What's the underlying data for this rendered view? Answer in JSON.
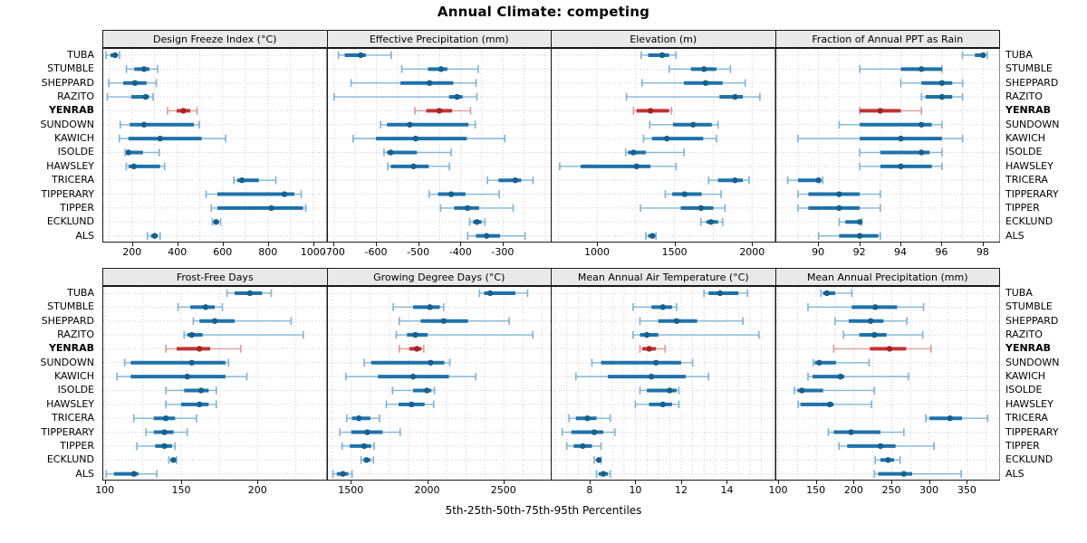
{
  "title": "Annual Climate: competing",
  "footer": "5th-25th-50th-75th-95th Percentiles",
  "percentile_labels": [
    "5th",
    "25th",
    "50th",
    "75th",
    "95th"
  ],
  "sites": [
    "TUBA",
    "STUMBLE",
    "SHEPPARD",
    "RAZITO",
    "YENRAB",
    "SUNDOWN",
    "KAWICH",
    "ISOLDE",
    "HAWSLEY",
    "TRICERA",
    "TIPPERARY",
    "TIPPER",
    "ECKLUND",
    "ALS"
  ],
  "highlight_site": "YENRAB",
  "colors": {
    "series": "#1d72aa",
    "series_dark": "#15608f",
    "series_light": "#82b4d6",
    "highlight": "#c03434",
    "highlight_dark": "#a52222",
    "highlight_light": "#dd9c9c",
    "strip_bg": "#e9e9e9",
    "grid": "#c8c8c8",
    "border": "#1a1a1a"
  },
  "chart_data": [
    {
      "type": "interval-dotplot",
      "title": "Design Freeze Index (°C)",
      "xlim": [
        69,
        1059
      ],
      "ticks": [
        200,
        400,
        600,
        800,
        1000
      ],
      "grid_step": 100,
      "percentiles": [
        [
          85,
          105,
          125,
          135,
          145
        ],
        [
          175,
          210,
          253,
          277,
          313
        ],
        [
          97,
          161,
          213,
          264,
          307
        ],
        [
          91,
          197,
          260,
          275,
          293
        ],
        [
          357,
          397,
          427,
          457,
          487
        ],
        [
          148,
          190,
          253,
          473,
          497
        ],
        [
          144,
          184,
          324,
          507,
          613
        ],
        [
          170,
          175,
          184,
          248,
          320
        ],
        [
          175,
          185,
          208,
          324,
          344
        ],
        [
          650,
          665,
          685,
          760,
          835
        ],
        [
          527,
          577,
          873,
          917,
          947
        ],
        [
          550,
          577,
          815,
          955,
          967
        ],
        [
          555,
          563,
          571,
          584,
          591
        ],
        [
          268,
          284,
          300,
          313,
          324
        ]
      ]
    },
    {
      "type": "interval-dotplot",
      "title": "Effective Precipitation (mm)",
      "xlim": [
        -717,
        -186
      ],
      "ticks": [
        -700,
        -600,
        -500,
        -400,
        -300
      ],
      "grid_step": 50,
      "percentiles": [
        [
          -690,
          -675,
          -637,
          -625,
          -565
        ],
        [
          -540,
          -478,
          -447,
          -432,
          -359
        ],
        [
          -660,
          -543,
          -474,
          -418,
          -364
        ],
        [
          -700,
          -428,
          -409,
          -396,
          -362
        ],
        [
          -509,
          -482,
          -451,
          -421,
          -377
        ],
        [
          -590,
          -575,
          -521,
          -382,
          -366
        ],
        [
          -655,
          -601,
          -507,
          -386,
          -296
        ],
        [
          -582,
          -575,
          -566,
          -504,
          -423
        ],
        [
          -573,
          -566,
          -512,
          -476,
          -427
        ],
        [
          -337,
          -311,
          -271,
          -257,
          -229
        ],
        [
          -475,
          -454,
          -423,
          -389,
          -309
        ],
        [
          -448,
          -416,
          -384,
          -357,
          -276
        ],
        [
          -379,
          -371,
          -362,
          -351,
          -343
        ],
        [
          -384,
          -364,
          -339,
          -307,
          -248
        ]
      ]
    },
    {
      "type": "interval-dotplot",
      "title": "Elevation (m)",
      "xlim": [
        702,
        2147
      ],
      "ticks": [
        1000,
        1500,
        2000
      ],
      "grid_step": 250,
      "percentiles": [
        [
          1285,
          1330,
          1420,
          1465,
          1510
        ],
        [
          1465,
          1605,
          1690,
          1770,
          1860
        ],
        [
          1290,
          1560,
          1700,
          1810,
          1955
        ],
        [
          1190,
          1790,
          1890,
          1940,
          2050
        ],
        [
          1235,
          1255,
          1345,
          1465,
          1480
        ],
        [
          1340,
          1490,
          1620,
          1740,
          1780
        ],
        [
          1300,
          1355,
          1450,
          1685,
          1770
        ],
        [
          1185,
          1200,
          1235,
          1315,
          1560
        ],
        [
          760,
          895,
          1255,
          1345,
          1510
        ],
        [
          1720,
          1780,
          1890,
          1940,
          1980
        ],
        [
          1440,
          1485,
          1565,
          1675,
          1800
        ],
        [
          1280,
          1540,
          1670,
          1750,
          1825
        ],
        [
          1670,
          1705,
          1735,
          1780,
          1810
        ],
        [
          1315,
          1330,
          1358,
          1370,
          1380
        ]
      ]
    },
    {
      "type": "interval-dotplot",
      "title": "Fraction of Annual PPT as Rain",
      "xlim": [
        87.9,
        98.8
      ],
      "ticks": [
        90,
        92,
        94,
        96,
        98
      ],
      "grid_step": 1,
      "percentiles": [
        [
          97,
          97.6,
          98,
          98,
          98.2
        ],
        [
          92,
          94,
          95,
          96,
          96
        ],
        [
          94,
          95,
          96,
          96.5,
          97
        ],
        [
          95,
          95.2,
          96,
          96.5,
          97
        ],
        [
          92,
          92,
          93,
          94,
          95
        ],
        [
          91,
          92,
          95,
          95.5,
          96
        ],
        [
          89,
          92,
          94,
          96,
          97
        ],
        [
          92,
          93,
          95,
          95.4,
          96
        ],
        [
          92,
          93,
          94,
          95.5,
          96
        ],
        [
          88.5,
          89,
          90,
          90,
          90.2
        ],
        [
          89,
          89.5,
          91,
          92,
          93
        ],
        [
          89,
          89.5,
          91,
          92,
          93
        ],
        [
          91,
          91.3,
          92,
          92,
          92.1
        ],
        [
          90,
          91,
          92,
          92.9,
          93
        ]
      ]
    },
    {
      "type": "interval-dotplot",
      "title": "Frost-Free Days",
      "xlim": [
        98.4,
        245.2
      ],
      "ticks": [
        100,
        150,
        200
      ],
      "grid_step": 25,
      "percentiles": [
        [
          180,
          185,
          195,
          203,
          209
        ],
        [
          148,
          156,
          166,
          172,
          177
        ],
        [
          158,
          162,
          172,
          185,
          222
        ],
        [
          152,
          154,
          157,
          164,
          230
        ],
        [
          140,
          147,
          162,
          169,
          189
        ],
        [
          113,
          117,
          157,
          179,
          181
        ],
        [
          108,
          117,
          154,
          179,
          193
        ],
        [
          140,
          152,
          163,
          168,
          173
        ],
        [
          140,
          150,
          162,
          168,
          173
        ],
        [
          119,
          132,
          140,
          146,
          160
        ],
        [
          127,
          132,
          139,
          145,
          154
        ],
        [
          121,
          133,
          139,
          144,
          146
        ],
        [
          142,
          143,
          145,
          146,
          147
        ],
        [
          101,
          106,
          119,
          122,
          134
        ]
      ]
    },
    {
      "type": "interval-dotplot",
      "title": "Growing Degree Days (°C)",
      "xlim": [
        1341,
        2810
      ],
      "ticks": [
        1500,
        2000,
        2500
      ],
      "grid_step": 125,
      "percentiles": [
        [
          2340,
          2370,
          2410,
          2575,
          2655
        ],
        [
          1775,
          1905,
          2015,
          2080,
          2105
        ],
        [
          1815,
          1955,
          2105,
          2265,
          2535
        ],
        [
          1795,
          1865,
          1920,
          2000,
          2690
        ],
        [
          1815,
          1880,
          1930,
          1960,
          1975
        ],
        [
          1585,
          1630,
          2020,
          2110,
          2145
        ],
        [
          1465,
          1675,
          1905,
          2140,
          2315
        ],
        [
          1770,
          1905,
          1995,
          2025,
          2045
        ],
        [
          1730,
          1810,
          1895,
          1980,
          2040
        ],
        [
          1470,
          1505,
          1550,
          1625,
          1685
        ],
        [
          1425,
          1500,
          1605,
          1705,
          1820
        ],
        [
          1440,
          1490,
          1585,
          1630,
          1650
        ],
        [
          1565,
          1580,
          1600,
          1625,
          1645
        ],
        [
          1380,
          1405,
          1445,
          1480,
          1505
        ]
      ]
    },
    {
      "type": "interval-dotplot",
      "title": "Mean Annual Air Temperature (°C)",
      "xlim": [
        6.3,
        16.1
      ],
      "ticks": [
        8,
        10,
        12,
        14
      ],
      "grid_step": 0.5,
      "percentiles": [
        [
          13.0,
          13.2,
          13.7,
          14.5,
          14.9
        ],
        [
          9.9,
          10.7,
          11.2,
          11.6,
          11.8
        ],
        [
          10.2,
          11.0,
          11.8,
          12.7,
          14.7
        ],
        [
          9.9,
          10.2,
          10.5,
          11.0,
          15.4
        ],
        [
          10.2,
          10.3,
          10.6,
          10.9,
          11.3
        ],
        [
          8.1,
          8.5,
          10.9,
          12.0,
          12.5
        ],
        [
          7.4,
          8.8,
          10.7,
          12.2,
          13.2
        ],
        [
          10.2,
          10.5,
          11.5,
          11.8,
          11.9
        ],
        [
          10.0,
          10.6,
          11.2,
          11.6,
          11.9
        ],
        [
          7.1,
          7.4,
          7.9,
          8.3,
          8.9
        ],
        [
          6.8,
          7.2,
          8.2,
          8.6,
          9.1
        ],
        [
          7.0,
          7.3,
          7.7,
          8.1,
          8.5
        ],
        [
          8.2,
          8.3,
          8.4,
          8.45,
          8.5
        ],
        [
          8.3,
          8.4,
          8.6,
          8.8,
          8.9
        ]
      ]
    },
    {
      "type": "interval-dotplot",
      "title": "Mean Annual Precipitation (mm)",
      "xlim": [
        95.8,
        392.8
      ],
      "ticks": [
        100,
        150,
        200,
        250,
        300,
        350
      ],
      "grid_step": 25,
      "percentiles": [
        [
          156,
          159,
          164,
          175,
          197
        ],
        [
          139,
          197,
          228,
          257,
          292
        ],
        [
          175,
          193,
          222,
          239,
          270
        ],
        [
          186,
          207,
          227,
          243,
          291
        ],
        [
          173,
          221,
          247,
          269,
          302
        ],
        [
          146,
          148,
          154,
          176,
          220
        ],
        [
          139,
          145,
          182,
          187,
          272
        ],
        [
          121,
          125,
          131,
          159,
          227
        ],
        [
          126,
          129,
          168,
          173,
          223
        ],
        [
          295,
          300,
          327,
          343,
          377
        ],
        [
          166,
          173,
          196,
          235,
          266
        ],
        [
          180,
          191,
          235,
          255,
          306
        ],
        [
          228,
          235,
          245,
          253,
          261
        ],
        [
          227,
          232,
          266,
          277,
          342
        ]
      ]
    }
  ]
}
